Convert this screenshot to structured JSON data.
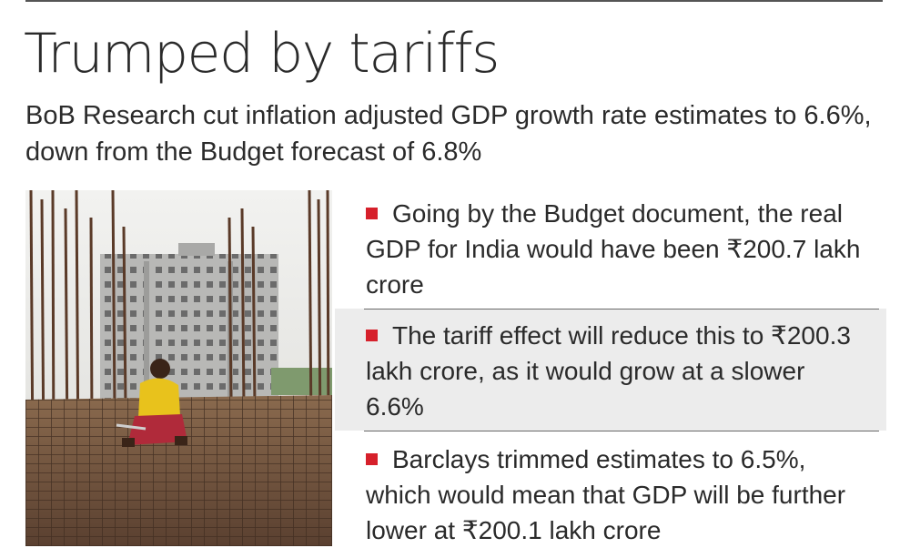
{
  "headline": "Trumped by tariffs",
  "subhead": "BoB Research cut inflation adjusted GDP growth rate estimates to 6.6%, down from the Budget forecast of 6.8%",
  "bullets": [
    {
      "text": "Going by the Budget document, the real GDP for India would have been ₹200.7 lakh crore"
    },
    {
      "text": "The tariff effect will reduce this to ₹200.3 lakh crore, as it would grow at a slower 6.6%"
    },
    {
      "text": "Barclays trimmed estimates to 6.5%, which would mean that GDP will be further lower at ₹200.1 lakh crore"
    }
  ],
  "colors": {
    "bullet_marker": "#d6202b",
    "highlight_band": "#ececec",
    "text": "#2a2a2a"
  },
  "photo": {
    "subject": "construction-site-worker-photo"
  }
}
